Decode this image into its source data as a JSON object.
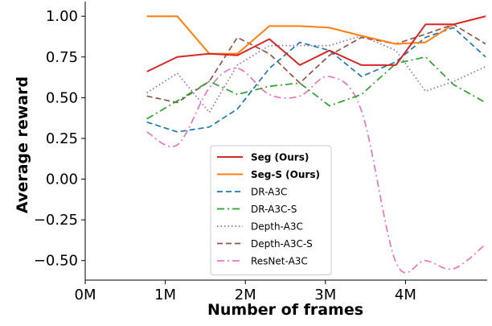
{
  "chart_data": {
    "type": "line",
    "xlabel": "Number of frames",
    "ylabel": "Average reward",
    "xlim": [
      0,
      5000000
    ],
    "ylim": [
      -0.62,
      1.08
    ],
    "x_ticks": [
      0,
      1000000,
      2000000,
      3000000,
      4000000
    ],
    "x_tick_labels": [
      "0M",
      "1M",
      "2M",
      "3M",
      "4M"
    ],
    "y_ticks": [
      1.0,
      0.75,
      0.5,
      0.25,
      0.0,
      -0.25,
      -0.5
    ],
    "y_tick_labels": [
      "1.00",
      "0.75",
      "0.50",
      "0.25",
      "0.00",
      "−0.25",
      "−0.50"
    ],
    "grid": false,
    "legend_position": "lower-center",
    "series": [
      {
        "name": "Seg (Ours)",
        "color": "#d62728",
        "style": "solid",
        "bold": true,
        "smooth": false,
        "x": [
          770000,
          1150000,
          1550000,
          1900000,
          2300000,
          2680000,
          3050000,
          3450000,
          3880000,
          4250000,
          4600000,
          5000000
        ],
        "y": [
          0.66,
          0.75,
          0.77,
          0.76,
          0.86,
          0.7,
          0.79,
          0.7,
          0.7,
          0.95,
          0.95,
          1.0
        ]
      },
      {
        "name": "Seg-S (Ours)",
        "color": "#ff7f0e",
        "style": "solid",
        "bold": true,
        "smooth": false,
        "x": [
          770000,
          1150000,
          1550000,
          1900000,
          2300000,
          2680000,
          3050000,
          3450000,
          3880000,
          4250000,
          4600000,
          5000000
        ],
        "y": [
          1.0,
          1.0,
          0.77,
          0.77,
          0.94,
          0.94,
          0.93,
          0.88,
          0.83,
          0.84,
          0.95,
          1.0
        ]
      },
      {
        "name": "DR-A3C",
        "color": "#1f77b4",
        "style": "dashed",
        "bold": false,
        "smooth": false,
        "x": [
          770000,
          1150000,
          1550000,
          1900000,
          2300000,
          2680000,
          3050000,
          3450000,
          3880000,
          4250000,
          4600000,
          5000000
        ],
        "y": [
          0.35,
          0.29,
          0.32,
          0.43,
          0.68,
          0.84,
          0.79,
          0.63,
          0.72,
          0.87,
          0.93,
          0.75
        ]
      },
      {
        "name": "DR-A3C-S",
        "color": "#2ca02c",
        "style": "dashdot",
        "bold": false,
        "smooth": false,
        "x": [
          770000,
          1150000,
          1550000,
          1900000,
          2300000,
          2680000,
          3050000,
          3450000,
          3880000,
          4250000,
          4600000,
          5000000
        ],
        "y": [
          0.37,
          0.48,
          0.6,
          0.52,
          0.57,
          0.59,
          0.45,
          0.52,
          0.71,
          0.75,
          0.58,
          0.47
        ]
      },
      {
        "name": "Depth-A3C",
        "color": "#9467bd",
        "style": "dotted",
        "bold": false,
        "smooth": false,
        "x": [
          770000,
          1150000,
          1550000,
          1900000,
          2300000,
          2680000,
          3050000,
          3450000,
          3880000,
          4250000,
          4600000,
          5000000
        ],
        "y": [
          0.53,
          0.65,
          0.41,
          0.7,
          0.82,
          0.82,
          0.82,
          0.88,
          0.79,
          0.54,
          0.6,
          0.69
        ]
      },
      {
        "name": "Depth-A3C-S",
        "color": "#8c564b",
        "style": "dashed",
        "bold": false,
        "smooth": false,
        "x": [
          770000,
          1150000,
          1550000,
          1900000,
          2300000,
          2680000,
          3050000,
          3450000,
          3880000,
          4250000,
          4600000,
          5000000
        ],
        "y": [
          0.51,
          0.47,
          0.6,
          0.87,
          0.77,
          0.59,
          0.76,
          0.87,
          0.83,
          0.89,
          0.95,
          0.83
        ]
      },
      {
        "name": "ResNet-A3C",
        "color": "#e377c2",
        "style": "dashdot",
        "bold": false,
        "smooth": true,
        "x": [
          770000,
          1150000,
          1550000,
          1900000,
          2300000,
          2680000,
          3050000,
          3450000,
          3880000,
          4250000,
          4600000,
          5000000
        ],
        "y": [
          0.29,
          0.21,
          0.56,
          0.68,
          0.52,
          0.51,
          0.63,
          0.42,
          -0.51,
          -0.5,
          -0.55,
          -0.4
        ]
      }
    ]
  }
}
